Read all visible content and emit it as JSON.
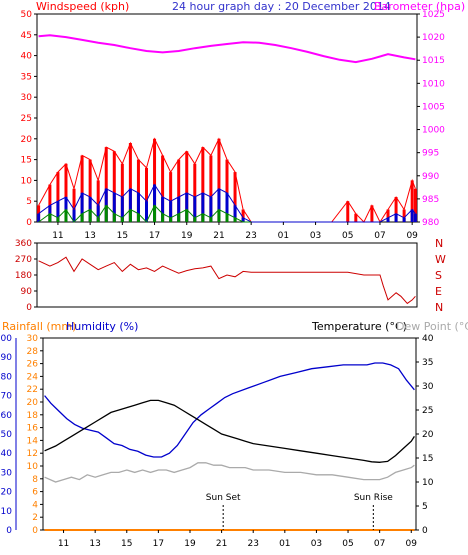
{
  "header": {
    "left_title": "Windspeed (kph)",
    "center_title": "24 hour graph day : 20 December 2014",
    "right_title": "Barometer (hpa)"
  },
  "bottom_header": {
    "rainfall": "Rainfall (mm)",
    "humidity": "Humidity (%)",
    "temperature": "Temperature (°C)",
    "dew_point": "Dew Point (°C)"
  },
  "colors": {
    "wind_left_axis": "#ff0000",
    "wind_gust": "#ff0000",
    "wind_avg": "#0000cc",
    "wind_min": "#008800",
    "barometer": "#ff00ff",
    "direction": "#cc0000",
    "rain": "#ff8000",
    "humidity": "#0000cc",
    "temperature": "#000000",
    "dew_point": "#aaaaaa",
    "title_blue": "#3333cc"
  },
  "x_ticks": [
    "11",
    "13",
    "15",
    "17",
    "19",
    "21",
    "23",
    "01",
    "03",
    "05",
    "07",
    "09"
  ],
  "annotations": {
    "sunset": "Sun Set",
    "sunrise": "Sun Rise"
  },
  "chart_data": [
    {
      "type": "line",
      "title": "24 hour graph day : 20 December 2014",
      "xlabel": "",
      "x_hours_range": [
        9.7,
        33.3
      ],
      "left_axis": {
        "label": "Windspeed (kph)",
        "ylim": [
          0,
          50
        ],
        "ticks": [
          0,
          5,
          10,
          15,
          20,
          25,
          30,
          35,
          40,
          45,
          50
        ]
      },
      "right_axis": {
        "label": "Barometer (hpa)",
        "ylim": [
          980,
          1025
        ],
        "ticks": [
          980,
          985,
          990,
          995,
          1000,
          1005,
          1010,
          1015,
          1020,
          1025
        ]
      },
      "grid": false,
      "series": [
        {
          "name": "Barometer (hpa)",
          "axis": "right",
          "x": [
            9.8,
            10.5,
            11.5,
            12.5,
            13.5,
            14.5,
            15.5,
            16.5,
            17.5,
            18.5,
            19.5,
            20.5,
            21.5,
            22.5,
            23.5,
            24.5,
            25.5,
            26.5,
            27.5,
            28.5,
            29.5,
            30.5,
            31.5,
            32.5,
            33.2
          ],
          "values": [
            1020.2,
            1020.4,
            1020.0,
            1019.4,
            1018.8,
            1018.3,
            1017.6,
            1017.0,
            1016.7,
            1017.0,
            1017.6,
            1018.1,
            1018.5,
            1018.9,
            1018.8,
            1018.3,
            1017.6,
            1016.8,
            1015.9,
            1015.1,
            1014.6,
            1015.3,
            1016.3,
            1015.6,
            1015.2
          ]
        },
        {
          "name": "Wind gust",
          "axis": "left",
          "x": [
            9.8,
            10.5,
            11,
            11.5,
            12,
            12.5,
            13,
            13.5,
            14,
            14.5,
            15,
            15.5,
            16,
            16.5,
            17,
            17.5,
            18,
            18.5,
            19,
            19.5,
            20,
            20.5,
            21,
            21.5,
            22,
            22.5,
            23,
            24,
            25,
            26,
            27,
            28,
            29,
            29.5,
            30,
            30.5,
            31,
            31.5,
            32,
            32.5,
            33,
            33.2
          ],
          "values": [
            4,
            9,
            12,
            14,
            8,
            16,
            15,
            10,
            18,
            17,
            14,
            19,
            15,
            13,
            20,
            16,
            12,
            15,
            17,
            14,
            18,
            16,
            20,
            15,
            12,
            3,
            0,
            0,
            0,
            0,
            0,
            0,
            5,
            2,
            0,
            4,
            0,
            3,
            6,
            3,
            10,
            8
          ]
        },
        {
          "name": "Wind average",
          "axis": "left",
          "x": [
            9.8,
            10.5,
            11,
            11.5,
            12,
            12.5,
            13,
            13.5,
            14,
            14.5,
            15,
            15.5,
            16,
            16.5,
            17,
            17.5,
            18,
            18.5,
            19,
            19.5,
            20,
            20.5,
            21,
            21.5,
            22,
            22.5,
            23,
            29,
            30,
            31,
            31.5,
            32,
            32.5,
            33,
            33.2
          ],
          "values": [
            2,
            4,
            5,
            6,
            3,
            7,
            6,
            4,
            8,
            7,
            6,
            8,
            7,
            5,
            9,
            6,
            5,
            6,
            7,
            6,
            7,
            6,
            8,
            7,
            4,
            1,
            0,
            0,
            0,
            0,
            1,
            2,
            1,
            3,
            2
          ]
        },
        {
          "name": "Wind minimum",
          "axis": "left",
          "x": [
            9.8,
            10.5,
            11,
            11.5,
            12,
            12.5,
            13,
            13.5,
            14,
            14.5,
            15,
            15.5,
            16,
            16.5,
            17,
            17.5,
            18,
            18.5,
            19,
            19.5,
            20,
            20.5,
            21,
            21.5,
            22,
            22.5,
            23
          ],
          "values": [
            0,
            2,
            1,
            3,
            0,
            2,
            3,
            1,
            4,
            2,
            1,
            3,
            2,
            0,
            4,
            2,
            1,
            2,
            3,
            1,
            2,
            1,
            3,
            2,
            1,
            0,
            0
          ]
        }
      ]
    },
    {
      "type": "line",
      "x_hours_range": [
        9.7,
        33.3
      ],
      "left_axis": {
        "ylim": [
          0,
          360
        ],
        "ticks": [
          0,
          90,
          180,
          270,
          360
        ]
      },
      "right_axis": {
        "tick_labels": [
          "N",
          "W",
          "S",
          "E",
          "N"
        ]
      },
      "series": [
        {
          "name": "Wind direction",
          "x": [
            9.8,
            10.5,
            11,
            11.5,
            12,
            12.5,
            13,
            13.5,
            14,
            14.5,
            15,
            15.5,
            16,
            16.5,
            17,
            17.5,
            18,
            18.5,
            19,
            19.5,
            20,
            20.5,
            21,
            21.5,
            22,
            22.5,
            23,
            24,
            25,
            26,
            27,
            28,
            29,
            30,
            30.5,
            31,
            31.2,
            31.5,
            32,
            32.3,
            32.7,
            33,
            33.2
          ],
          "values": [
            260,
            230,
            250,
            280,
            200,
            270,
            240,
            210,
            230,
            250,
            200,
            240,
            210,
            220,
            200,
            230,
            210,
            190,
            205,
            215,
            220,
            230,
            160,
            180,
            170,
            200,
            195,
            195,
            195,
            195,
            195,
            195,
            195,
            180,
            180,
            180,
            120,
            40,
            80,
            60,
            20,
            40,
            60
          ]
        }
      ]
    },
    {
      "type": "line",
      "x_hours_range": [
        9.7,
        33.3
      ],
      "axes": [
        {
          "label": "Humidity (%)",
          "ylim": [
            0,
            100
          ],
          "ticks": [
            0,
            10,
            20,
            30,
            40,
            50,
            60,
            70,
            80,
            90,
            100
          ]
        },
        {
          "label": "Rainfall (mm)",
          "ylim": [
            0,
            30
          ],
          "ticks": [
            0,
            2,
            4,
            6,
            8,
            10,
            12,
            14,
            16,
            18,
            20,
            22,
            24,
            26,
            28,
            30
          ]
        },
        {
          "label": "Temperature (°C)",
          "ylim": [
            0,
            40
          ],
          "ticks": [
            0,
            5,
            10,
            15,
            20,
            25,
            30,
            35,
            40
          ]
        }
      ],
      "series": [
        {
          "name": "Humidity (%)",
          "axis": "humidity",
          "x": [
            9.8,
            10.2,
            10.7,
            11.2,
            11.7,
            12.2,
            12.7,
            13.2,
            13.7,
            14.2,
            14.7,
            15.2,
            15.7,
            16.2,
            16.7,
            17.2,
            17.7,
            18.2,
            18.7,
            19.2,
            19.7,
            20.2,
            20.7,
            21.2,
            21.7,
            22.7,
            23.7,
            24.7,
            25.7,
            26.7,
            27.7,
            28.7,
            29.7,
            30.2,
            30.7,
            31.2,
            31.7,
            32.2,
            32.7,
            33.2
          ],
          "values": [
            70,
            66,
            62,
            58,
            55,
            53,
            52,
            51,
            48,
            45,
            44,
            42,
            41,
            39,
            38,
            38,
            40,
            44,
            50,
            56,
            60,
            63,
            66,
            69,
            71,
            74,
            77,
            80,
            82,
            84,
            85,
            86,
            86,
            86,
            87,
            87,
            86,
            84,
            78,
            73
          ]
        },
        {
          "name": "Temperature (°C)",
          "axis": "temperature",
          "x": [
            9.8,
            10.5,
            11,
            11.5,
            12,
            12.5,
            13,
            13.5,
            14,
            14.5,
            15,
            15.5,
            16,
            16.5,
            17,
            17.5,
            18,
            18.5,
            19,
            19.5,
            20,
            20.5,
            21,
            21.5,
            22,
            22.5,
            23,
            24,
            25,
            26,
            27,
            28,
            29,
            30,
            30.5,
            31,
            31.5,
            32,
            32.5,
            33,
            33.2
          ],
          "values": [
            16.5,
            17.5,
            18.5,
            19.5,
            20.5,
            21.5,
            22.5,
            23.5,
            24.5,
            25,
            25.5,
            26,
            26.5,
            27,
            27,
            26.5,
            26,
            25,
            24,
            23,
            22,
            21,
            20,
            19.5,
            19,
            18.5,
            18,
            17.5,
            17,
            16.5,
            16,
            15.5,
            15,
            14.5,
            14.2,
            14.1,
            14.3,
            15.5,
            17,
            18.5,
            19.5
          ]
        },
        {
          "name": "Dew Point (°C)",
          "axis": "temperature",
          "x": [
            9.8,
            10.5,
            11,
            11.5,
            12,
            12.5,
            13,
            13.5,
            14,
            14.5,
            15,
            15.5,
            16,
            16.5,
            17,
            17.5,
            18,
            18.5,
            19,
            19.5,
            20,
            20.5,
            21,
            21.5,
            22,
            22.5,
            23,
            24,
            25,
            26,
            27,
            28,
            29,
            30,
            30.5,
            31,
            31.5,
            32,
            32.5,
            33,
            33.2
          ],
          "values": [
            11,
            10,
            10.5,
            11,
            10.5,
            11.5,
            11,
            11.5,
            12,
            12,
            12.5,
            12,
            12.5,
            12,
            12.5,
            12.5,
            12,
            12.5,
            13,
            14,
            14,
            13.5,
            13.5,
            13,
            13,
            13,
            12.5,
            12.5,
            12,
            12,
            11.5,
            11.5,
            11,
            10.5,
            10.5,
            10.5,
            11,
            12,
            12.5,
            13,
            13.5
          ]
        },
        {
          "name": "Rainfall (mm)",
          "axis": "rainfall",
          "x": [
            9.8,
            33.2
          ],
          "values": [
            0,
            0
          ]
        }
      ],
      "events": [
        {
          "label": "Sun Set",
          "x_hour": 21.1
        },
        {
          "label": "Sun Rise",
          "x_hour": 30.6
        }
      ]
    }
  ]
}
